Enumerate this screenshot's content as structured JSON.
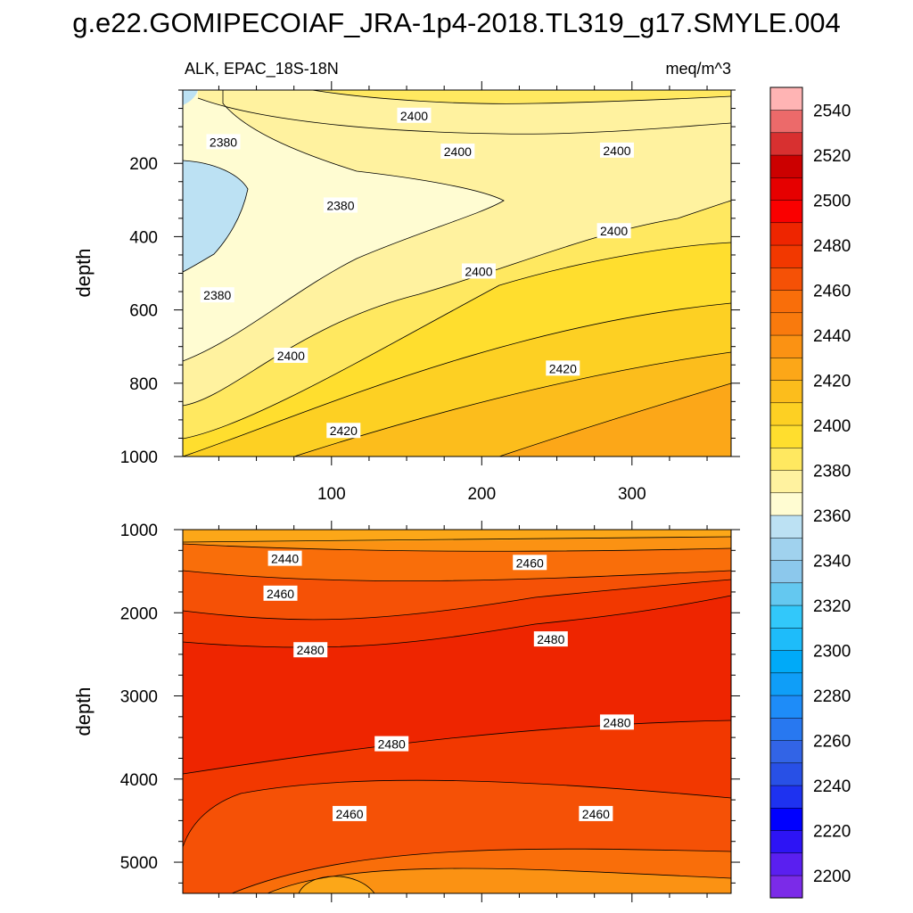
{
  "title": "g.e22.GOMIPECOIAF_JRA-1p4-2018.TL319_g17.SMYLE.004",
  "chart_data": {
    "type": "heatmap",
    "variable_label": "ALK, EPAC_18S-18N",
    "units_label": "meq/m^3",
    "ylabel": "depth",
    "xlim": [
      1,
      366
    ],
    "x_ticks": [
      100,
      200,
      300
    ],
    "colors": {
      "fill_1": "#fffcd2",
      "fill_2": "#fff29f",
      "fill_3": "#ffe860",
      "fill_4": "#ffde2e",
      "fill_5": "#fdd023",
      "fill_6": "#fcbd1c",
      "fill_7": "#fca718",
      "fill_8": "#fb9213",
      "fill_9": "#f96e0a",
      "fill_10": "#f55106",
      "fill_11": "#f23800",
      "fill_12": "#ee2500",
      "low_blue": "#bce1f3"
    },
    "panels": [
      {
        "name": "upper",
        "ylim": [
          0,
          1000
        ],
        "y_ticks": [
          200,
          400,
          600,
          800,
          1000
        ],
        "contour_labels": [
          {
            "text": "2400",
            "x": 155,
            "y": 70
          },
          {
            "text": "2380",
            "x": 28,
            "y": 142
          },
          {
            "text": "2400",
            "x": 184,
            "y": 168
          },
          {
            "text": "2400",
            "x": 290,
            "y": 165
          },
          {
            "text": "2380",
            "x": 106,
            "y": 315
          },
          {
            "text": "2400",
            "x": 288,
            "y": 385
          },
          {
            "text": "2400",
            "x": 198,
            "y": 495
          },
          {
            "text": "2380",
            "x": 24,
            "y": 560
          },
          {
            "text": "2400",
            "x": 73,
            "y": 725
          },
          {
            "text": "2420",
            "x": 254,
            "y": 760
          },
          {
            "text": "2420",
            "x": 108,
            "y": 930
          }
        ]
      },
      {
        "name": "lower",
        "ylim": [
          1000,
          5375
        ],
        "y_ticks": [
          1000,
          2000,
          3000,
          4000,
          5000
        ],
        "contour_labels": [
          {
            "text": "2440",
            "x": 69,
            "y": 1350
          },
          {
            "text": "2460",
            "x": 232,
            "y": 1400
          },
          {
            "text": "2460",
            "x": 66,
            "y": 1770
          },
          {
            "text": "2480",
            "x": 86,
            "y": 2450
          },
          {
            "text": "2480",
            "x": 246,
            "y": 2320
          },
          {
            "text": "2480",
            "x": 290,
            "y": 3320
          },
          {
            "text": "2480",
            "x": 140,
            "y": 3580
          },
          {
            "text": "2460",
            "x": 112,
            "y": 4420
          },
          {
            "text": "2460",
            "x": 276,
            "y": 4420
          }
        ]
      }
    ],
    "colorbar": {
      "tick_labels": [
        "2200",
        "2220",
        "2240",
        "2260",
        "2280",
        "2300",
        "2320",
        "2340",
        "2360",
        "2380",
        "2400",
        "2420",
        "2440",
        "2460",
        "2480",
        "2500",
        "2520",
        "2540"
      ],
      "colors_bottom_to_top": [
        "#7b2be8",
        "#5a1ff0",
        "#2d14f5",
        "#0000ff",
        "#1e32f0",
        "#2850e6",
        "#3264e6",
        "#2878f0",
        "#1e8cf8",
        "#0f9ef8",
        "#00aaf8",
        "#1ebcfa",
        "#32c8fa",
        "#64c8f0",
        "#8cc8ec",
        "#a0d2ee",
        "#bce1f3",
        "#fffcd2",
        "#fff29f",
        "#ffe860",
        "#ffde2e",
        "#fdd023",
        "#fcbd1c",
        "#fca718",
        "#fb9213",
        "#f97a0d",
        "#f96e0a",
        "#f55106",
        "#f23800",
        "#ee2500",
        "#fa0000",
        "#e60000",
        "#cc0000",
        "#d83030",
        "#ec6a6a",
        "#ffb4b4"
      ]
    }
  }
}
